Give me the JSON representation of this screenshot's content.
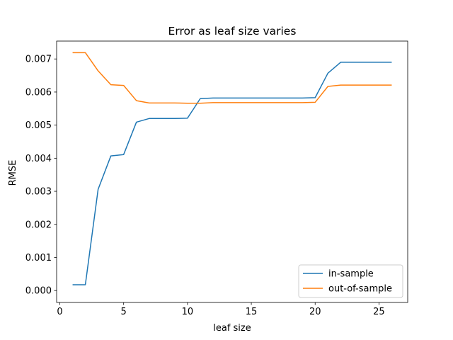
{
  "chart_data": {
    "type": "line",
    "title": "Error as leaf size varies",
    "xlabel": "leaf size",
    "ylabel": "RMSE",
    "xlim": [
      -0.25,
      27.25
    ],
    "ylim": [
      -0.00036,
      0.00754
    ],
    "xticks": [
      0,
      5,
      10,
      15,
      20,
      25
    ],
    "yticks": [
      0.0,
      0.001,
      0.002,
      0.003,
      0.004,
      0.005,
      0.006,
      0.007
    ],
    "ytick_labels": [
      "0.000",
      "0.001",
      "0.002",
      "0.003",
      "0.004",
      "0.005",
      "0.006",
      "0.007"
    ],
    "legend_position": "lower right",
    "grid": false,
    "x": [
      1,
      2,
      3,
      4,
      5,
      6,
      7,
      8,
      9,
      10,
      11,
      12,
      13,
      14,
      15,
      16,
      17,
      18,
      19,
      20,
      21,
      22,
      23,
      24,
      25,
      26
    ],
    "series": [
      {
        "name": "in-sample",
        "color": "#1f77b4",
        "values": [
          0.000176,
          0.000176,
          0.00306,
          0.00407,
          0.00411,
          0.00509,
          0.0052,
          0.0052,
          0.0052,
          0.00521,
          0.0058,
          0.00582,
          0.00582,
          0.00582,
          0.00582,
          0.00582,
          0.00582,
          0.00582,
          0.00582,
          0.00583,
          0.00657,
          0.0069,
          0.0069,
          0.0069,
          0.0069,
          0.0069
        ]
      },
      {
        "name": "out-of-sample",
        "color": "#ff7f0e",
        "values": [
          0.00719,
          0.00719,
          0.00664,
          0.00622,
          0.0062,
          0.00574,
          0.00567,
          0.00567,
          0.00567,
          0.00566,
          0.00566,
          0.00568,
          0.00568,
          0.00568,
          0.00568,
          0.00568,
          0.00568,
          0.00568,
          0.00568,
          0.00569,
          0.00617,
          0.00621,
          0.00621,
          0.00621,
          0.00621,
          0.00621
        ]
      }
    ]
  }
}
